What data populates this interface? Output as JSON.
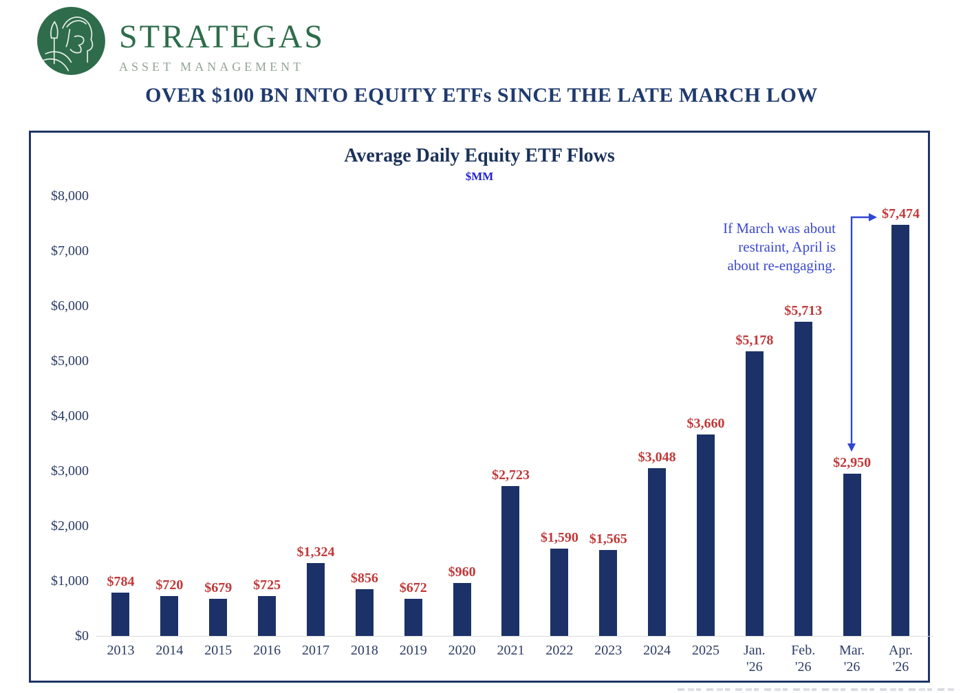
{
  "brand": {
    "name": "STRATEGAS",
    "subtitle": "ASSET MANAGEMENT",
    "logo_green": "#2e6c4b"
  },
  "headline": "OVER $100 BN INTO EQUITY ETFs SINCE THE LATE MARCH LOW",
  "chart_data": {
    "type": "bar",
    "title": "Average Daily Equity ETF Flows",
    "subtitle": "$MM",
    "categories": [
      [
        "2013"
      ],
      [
        "2014"
      ],
      [
        "2015"
      ],
      [
        "2016"
      ],
      [
        "2017"
      ],
      [
        "2018"
      ],
      [
        "2019"
      ],
      [
        "2020"
      ],
      [
        "2021"
      ],
      [
        "2022"
      ],
      [
        "2023"
      ],
      [
        "2024"
      ],
      [
        "2025"
      ],
      [
        "Jan.",
        "'26"
      ],
      [
        "Feb.",
        "'26"
      ],
      [
        "Mar.",
        "'26"
      ],
      [
        "Apr.",
        "'26"
      ]
    ],
    "values": [
      784,
      720,
      679,
      725,
      1324,
      856,
      672,
      960,
      2723,
      1590,
      1565,
      3048,
      3660,
      5178,
      5713,
      2950,
      7474
    ],
    "bar_labels": [
      "$784",
      "$720",
      "$679",
      "$725",
      "$1,324",
      "$856",
      "$672",
      "$960",
      "$2,723",
      "$1,590",
      "$1,565",
      "$3,048",
      "$3,660",
      "$5,178",
      "$5,713",
      "$2,950",
      "$7,474"
    ],
    "y_ticks": [
      "$8,000",
      "$7,000",
      "$6,000",
      "$5,000",
      "$4,000",
      "$3,000",
      "$2,000",
      "$1,000",
      "$0"
    ],
    "ylim": [
      0,
      8000
    ],
    "grid": false,
    "legend": false,
    "bar_color": "#1b3168",
    "value_label_color": "#c0393a",
    "axis_label_color": "#2b3b63",
    "annotation": {
      "lines": [
        "If March was about",
        "restraint, April is",
        "about re-engaging."
      ],
      "text_color": "#3c49cf",
      "arrow_color": "#2f46d6",
      "arrow_points_to": [
        "$7,474 (Apr. '26 bar label)",
        "Mar. '26 bar"
      ]
    }
  },
  "colors": {
    "headline_navy": "#1f3a6e",
    "title_navy": "#1b3159",
    "units_blue": "#2323cc",
    "chart_border_navy": "#1e3466",
    "baseline_gray": "#d9d9d9"
  }
}
